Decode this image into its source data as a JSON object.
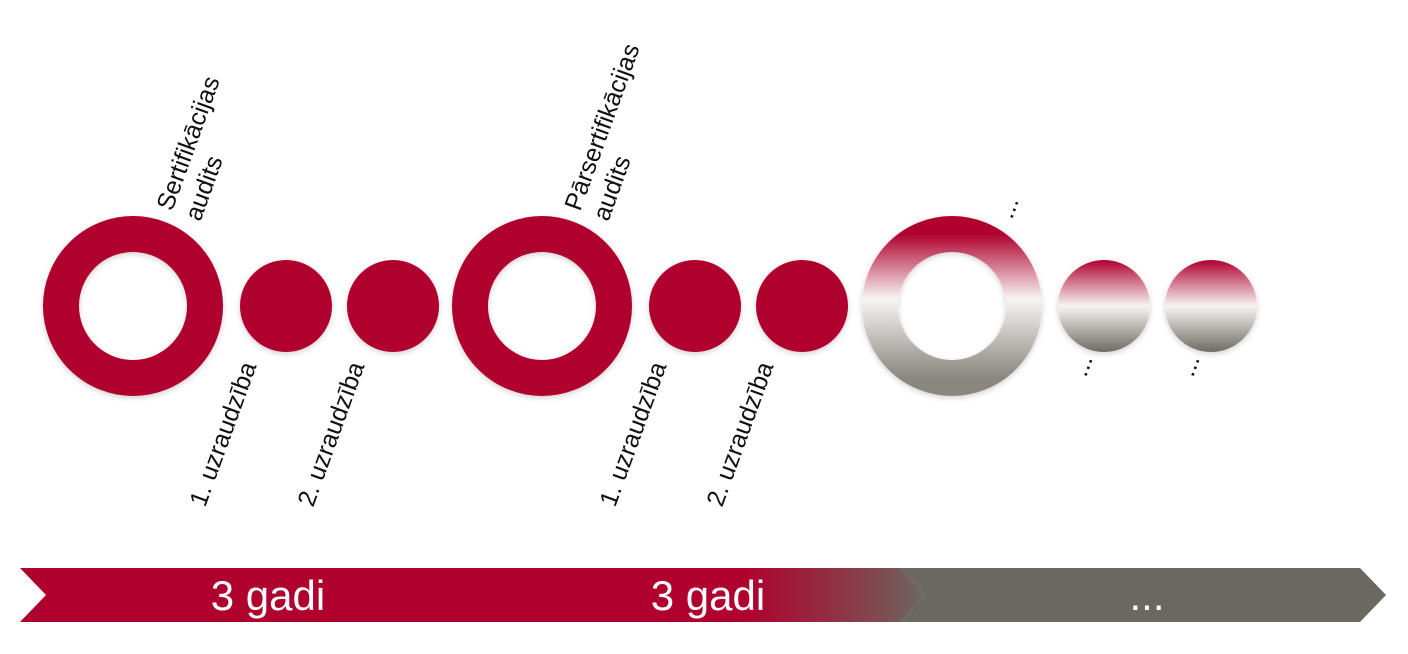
{
  "colors": {
    "primary": "#b0002e",
    "gray": "#6b6860",
    "light": "#f2f2f0"
  },
  "labels": {
    "cert_audit_line1": "Sertifikācijas",
    "cert_audit_line2": "audits",
    "recert_audit_line1": "Pārsertifikācijas",
    "recert_audit_line2": "audits",
    "surv1_a": "1. uzraudzība",
    "surv2_a": "2. uzraudzība",
    "surv1_b": "1. uzraudzība",
    "surv2_b": "2. uzraudzība",
    "next_ring": "...",
    "next_surv1": "...",
    "next_surv2": "..."
  },
  "timeline": {
    "segment1": "3 gadi",
    "segment2": "3 gadi",
    "segment3": "..."
  }
}
